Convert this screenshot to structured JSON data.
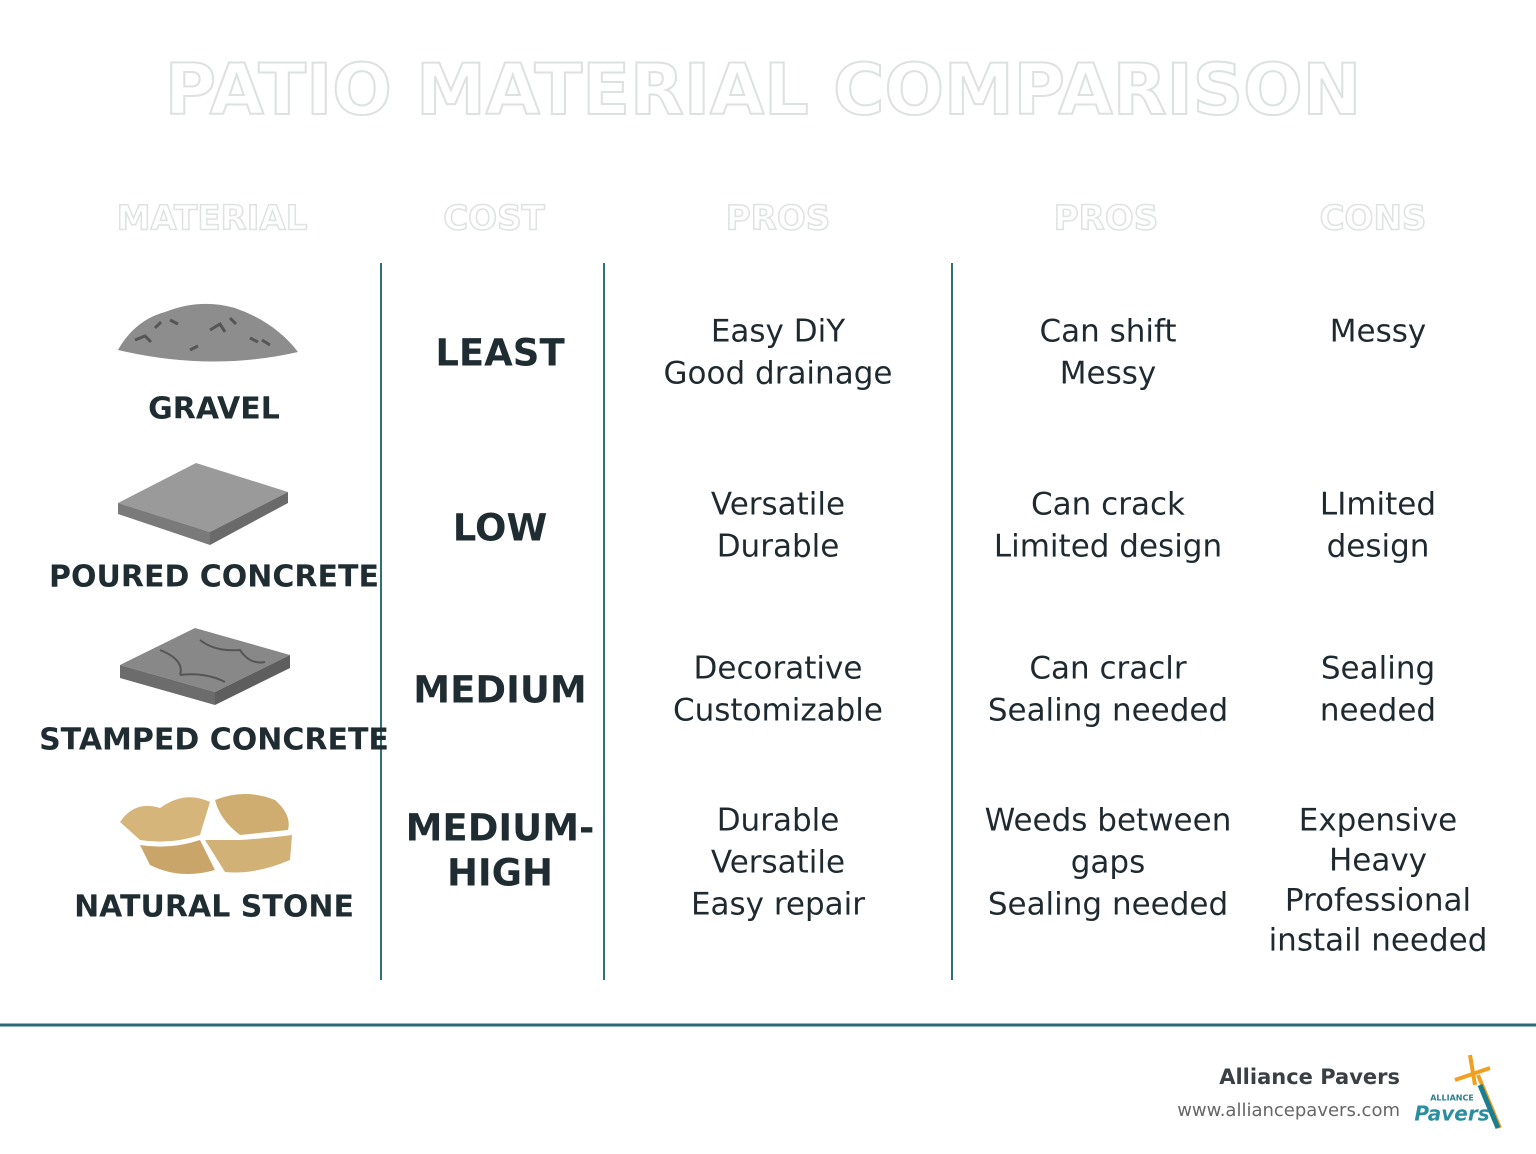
{
  "title": "PATIO MATERIAL COMPARISON",
  "headers": [
    "MATERIAL",
    "COST",
    "PROS",
    "PROS",
    "CONS"
  ],
  "rows": [
    {
      "material": "GRAVEL",
      "cost": [
        "LEAST"
      ],
      "pros": [
        "Easy DiY",
        "Good drainage"
      ],
      "pros2": [
        "Can shift",
        "Messy"
      ],
      "cons": [
        "Messy"
      ]
    },
    {
      "material": "POURED CONCRETE",
      "cost": [
        "LOW"
      ],
      "pros": [
        "Versatile",
        "Durable"
      ],
      "pros2": [
        "Can crack",
        "Limited design"
      ],
      "cons": [
        "LImited",
        "design"
      ]
    },
    {
      "material": "STAMPED CONCRETE",
      "cost": [
        "MEDIUM"
      ],
      "pros": [
        "Decorative",
        "Customizable"
      ],
      "pros2": [
        "Can craclr",
        "Sealing needed"
      ],
      "cons": [
        "Sealing",
        "needed"
      ]
    },
    {
      "material": "NATURAL STONE",
      "cost": [
        "MEDIUM-",
        "HIGH"
      ],
      "pros": [
        "Durable",
        "Versatile",
        "Easy repair"
      ],
      "pros2": [
        "Weeds between",
        "gaps",
        "Sealing needed"
      ],
      "cons": [
        "Expensive",
        "Heavy",
        "Professional",
        "instail needed"
      ]
    }
  ],
  "footer": {
    "company": "Alliance Pavers",
    "url": "www.alliancepavers.com",
    "logo_top": "ALLIANCE",
    "logo_bottom": "Pavers"
  }
}
